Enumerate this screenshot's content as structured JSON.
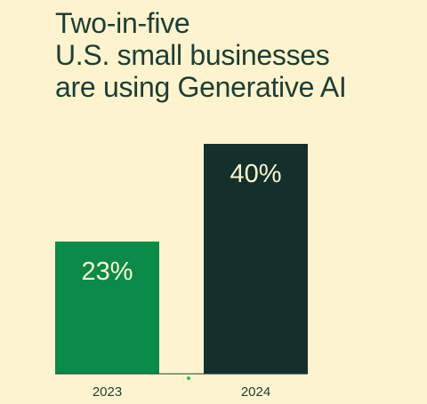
{
  "title_lines": [
    "Two-in-five",
    "U.S. small businesses",
    "are using Generative AI"
  ],
  "colors": {
    "background": "#fdf4cf",
    "title": "#1e3d34",
    "bar_2023": "#0c8a49",
    "bar_2024": "#14302d",
    "bar_label": "#fdf4cf",
    "axis": "#1e3d34",
    "axis_marker": "#2fb84a"
  },
  "chart_data": {
    "type": "bar",
    "categories": [
      "2023",
      "2024"
    ],
    "values": [
      23,
      40
    ],
    "value_labels": [
      "23%",
      "40%"
    ],
    "unit": "%",
    "title": "Two-in-five U.S. small businesses are using Generative AI",
    "xlabel": "",
    "ylabel": "",
    "ylim": [
      0,
      40
    ],
    "grid": false,
    "legend": "none"
  }
}
